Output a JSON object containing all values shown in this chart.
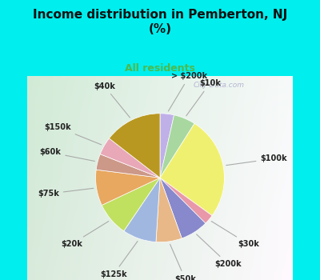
{
  "title": "Income distribution in Pemberton, NJ\n(%)",
  "subtitle": "All residents",
  "title_color": "#111111",
  "subtitle_color": "#4cba4c",
  "background_outer": "#00EEEE",
  "labels": [
    "> $200k",
    "$10k",
    "$100k",
    "$30k",
    "$200k",
    "$50k",
    "$125k",
    "$20k",
    "$75k",
    "$60k",
    "$150k",
    "$40k"
  ],
  "values": [
    3.5,
    5.5,
    26.0,
    2.5,
    7.0,
    6.5,
    8.5,
    8.5,
    9.0,
    4.0,
    4.5,
    14.5
  ],
  "colors": [
    "#c0b0e8",
    "#a8d8a0",
    "#f0f070",
    "#e898a8",
    "#8888cc",
    "#e8b888",
    "#a0b8e0",
    "#c0e060",
    "#e8a860",
    "#cc9888",
    "#e8a8b8",
    "#b89820"
  ]
}
